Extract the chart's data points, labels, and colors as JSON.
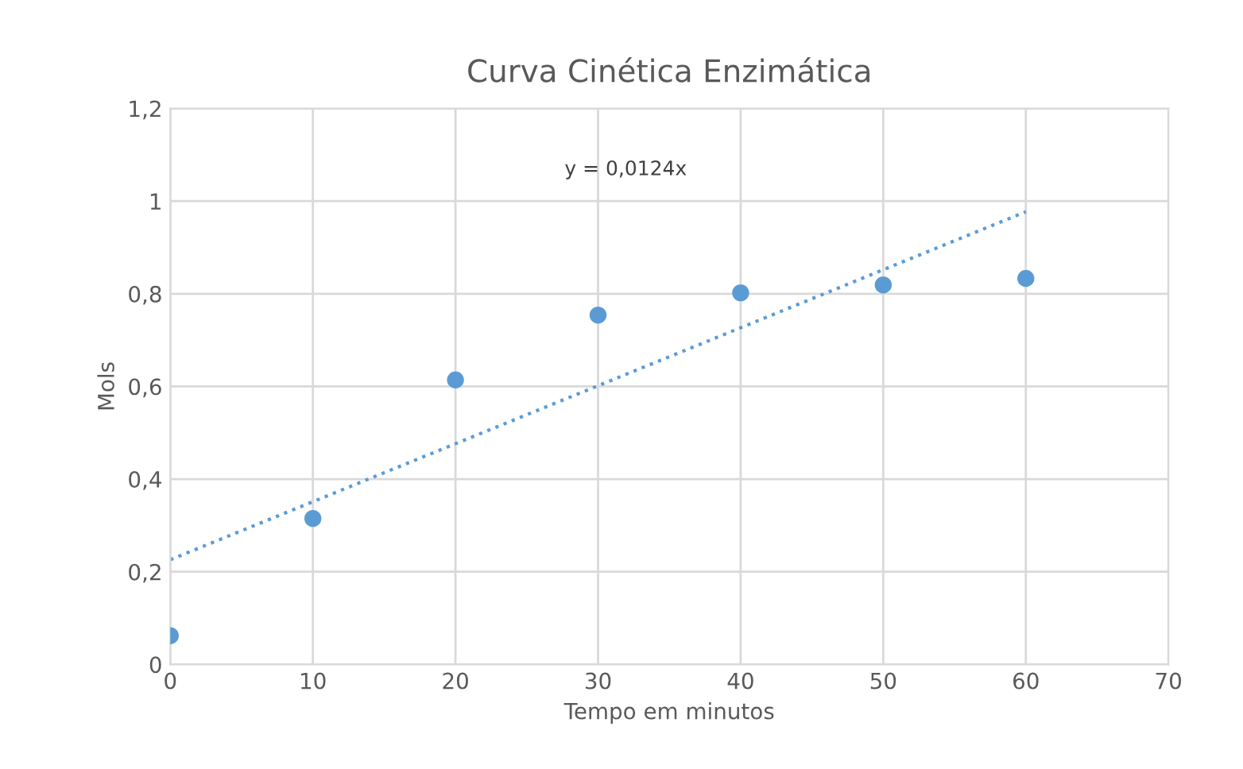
{
  "chart_data": {
    "type": "scatter",
    "title": "Curva Cinética Enzimática",
    "xlabel": "Tempo em minutos",
    "ylabel": "Mols",
    "x": [
      0,
      10,
      20,
      30,
      40,
      50,
      60
    ],
    "series": [
      {
        "color": "#5b9bd5",
        "values": [
          0.062,
          0.315,
          0.614,
          0.754,
          0.802,
          0.819,
          0.833
        ],
        "marker": "circle"
      },
      {
        "type": "line",
        "color": "#5b9bd5",
        "x": [
          0,
          60
        ],
        "values": [
          0.226,
          0.977
        ],
        "line_style": "dotted",
        "marker": "none"
      }
    ],
    "annotations": [
      "y = 0,0124x"
    ],
    "xlim": [
      0,
      70
    ],
    "xticks": [
      0,
      10,
      20,
      30,
      40,
      50,
      60,
      70
    ],
    "ylim": [
      0,
      1.2
    ],
    "yticks": [
      0,
      {
        "value": 0.2,
        "label": "0,2"
      },
      {
        "value": 0.4,
        "label": "0,4"
      },
      {
        "value": 0.6,
        "label": "0,6"
      },
      {
        "value": 0.8,
        "label": "0,8"
      },
      1,
      {
        "value": 1.2,
        "label": "1,2"
      }
    ],
    "grid": true,
    "legend": false
  }
}
